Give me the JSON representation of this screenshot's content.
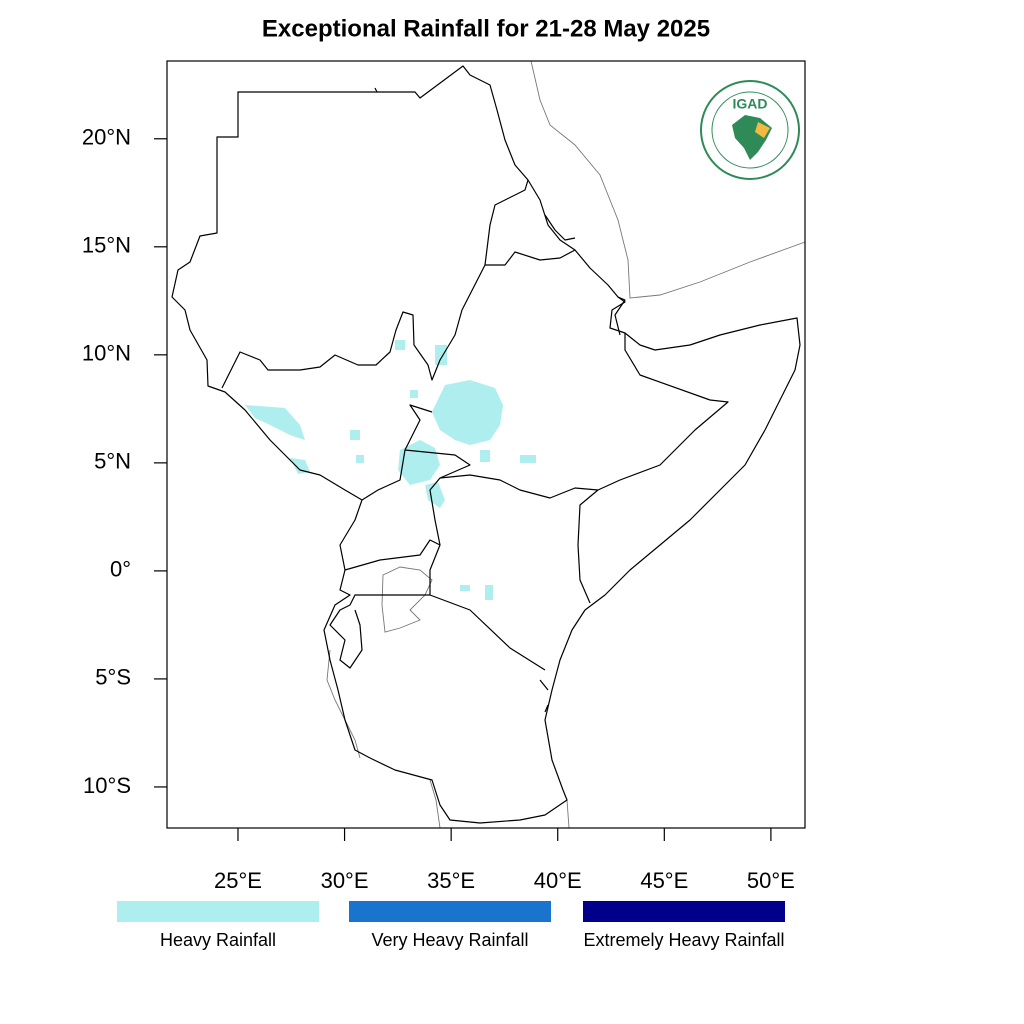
{
  "title": "Exceptional Rainfall for 21-28 May 2025",
  "map": {
    "lonlim": [
      21.67,
      51.6
    ],
    "latlim": [
      -11.9,
      23.6
    ],
    "lon_ticks": [
      {
        "value": 25,
        "label": "25°E"
      },
      {
        "value": 30,
        "label": "30°E"
      },
      {
        "value": 35,
        "label": "35°E"
      },
      {
        "value": 40,
        "label": "40°E"
      },
      {
        "value": 45,
        "label": "45°E"
      },
      {
        "value": 50,
        "label": "50°E"
      }
    ],
    "lat_ticks": [
      {
        "value": 20,
        "label": "20°N"
      },
      {
        "value": 15,
        "label": "15°N"
      },
      {
        "value": 10,
        "label": "10°N"
      },
      {
        "value": 5,
        "label": "5°N"
      },
      {
        "value": 0,
        "label": "0°"
      },
      {
        "value": -5,
        "label": "5°S"
      },
      {
        "value": -10,
        "label": "10°S"
      }
    ],
    "logo_text": "IGAD"
  },
  "legend": [
    {
      "label": "Heavy Rainfall",
      "color": "#afeeee"
    },
    {
      "label": "Very Heavy Rainfall",
      "color": "#1874cd"
    },
    {
      "label": "Extremely Heavy Rainfall",
      "color": "#00008b"
    }
  ]
}
